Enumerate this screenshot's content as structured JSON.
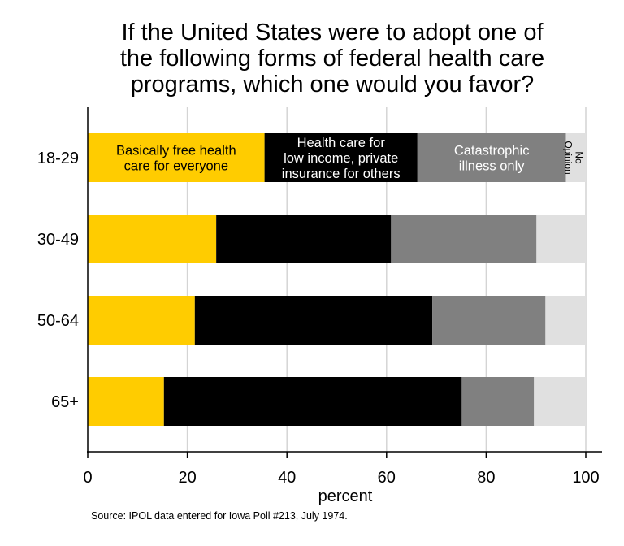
{
  "chart_data": {
    "type": "bar",
    "orientation": "horizontal",
    "stacked": true,
    "title": [
      "If the United States were to adopt one of",
      "the following forms of federal health care",
      "programs, which one would you favor?"
    ],
    "xlabel": "percent",
    "ylabel": "",
    "xlim": [
      0,
      100
    ],
    "xticks": [
      0,
      20,
      40,
      60,
      80,
      100
    ],
    "grid": "vertical",
    "legend": "labels inside top bar",
    "categories": [
      "18-29",
      "30-49",
      "50-64",
      "65+"
    ],
    "series": [
      {
        "name": "Basically free health care for everyone",
        "label_lines": [
          "Basically free health",
          "care for everyone"
        ],
        "color": "#FFCC00",
        "text_color": "#000000",
        "values": [
          35.5,
          25.8,
          21.5,
          15.3
        ]
      },
      {
        "name": "Health care for low income, private insurance for others",
        "label_lines": [
          "Health care for",
          "low income, private",
          "insurance for others"
        ],
        "color": "#000000",
        "text_color": "#ffffff",
        "values": [
          30.7,
          35.1,
          47.7,
          59.8
        ]
      },
      {
        "name": "Catastrophic illness only",
        "label_lines": [
          "Catastrophic",
          "illness only"
        ],
        "color": "#808080",
        "text_color": "#ffffff",
        "values": [
          29.8,
          29.2,
          22.7,
          14.5
        ]
      },
      {
        "name": "No Opinion",
        "label_lines": [
          "No",
          "Opinion"
        ],
        "color": "#E0E0E0",
        "text_color": "#000000",
        "values": [
          4.0,
          9.9,
          8.1,
          10.4
        ]
      }
    ]
  },
  "source": "Source: IPOL data entered for Iowa Poll #213, July 1974."
}
